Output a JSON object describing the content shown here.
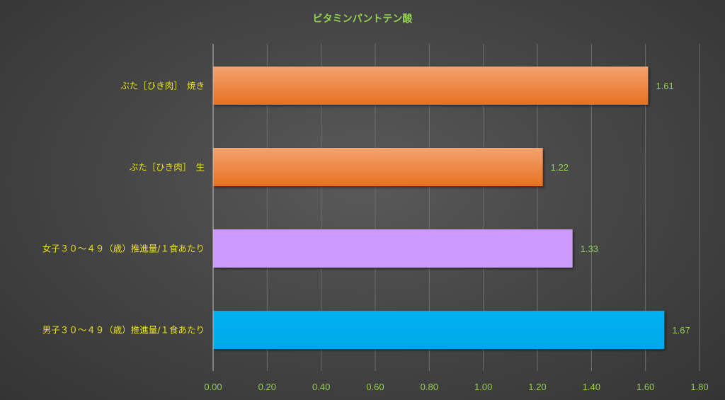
{
  "chart_data": {
    "type": "bar",
    "orientation": "horizontal",
    "title": "ビタミンパントテン酸",
    "categories": [
      "ぶた［ひき肉］　焼き",
      "ぶた［ひき肉］　生",
      "女子３０～４９（歳）推進量/１食あたり",
      "男子３０～４９（歳）推進量/１食あたり"
    ],
    "values": [
      1.61,
      1.22,
      1.33,
      1.67
    ],
    "value_labels": [
      "1.61",
      "1.22",
      "1.33",
      "1.67"
    ],
    "bar_colors": [
      "#ed7d31",
      "#ed7d31",
      "#cc99ff",
      "#00b0f0"
    ],
    "xlim": [
      0,
      1.8
    ],
    "x_ticks": [
      "0.00",
      "0.20",
      "0.40",
      "0.60",
      "0.80",
      "1.00",
      "1.20",
      "1.40",
      "1.60",
      "1.80"
    ],
    "grid": true,
    "legend": "none",
    "colors": {
      "title": "#92d050",
      "category_labels": "#e8e01f",
      "tick_labels": "#92d050",
      "data_labels": "#92d050"
    }
  }
}
